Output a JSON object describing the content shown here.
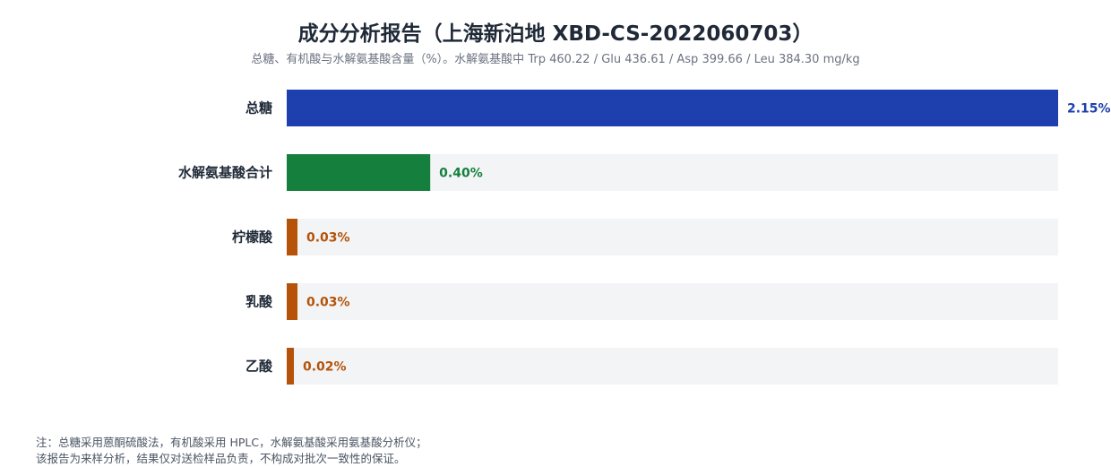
{
  "chart_data": {
    "type": "bar",
    "orientation": "horizontal",
    "title": "成分分析报告（上海新泊地 XBD-CS-2022060703）",
    "subtitle": "总糖、有机酸与水解氨基酸含量（%）。水解氨基酸中 Trp 460.22 / Glu 436.61 / Asp 399.66 / Leu 384.30 mg/kg",
    "categories": [
      "总糖",
      "水解氨基酸合计",
      "柠檬酸",
      "乳酸",
      "乙酸"
    ],
    "values": [
      2.15,
      0.4,
      0.03,
      0.03,
      0.02
    ],
    "value_labels": [
      "2.15%",
      "0.40%",
      "0.03%",
      "0.03%",
      "0.02%"
    ],
    "colors": [
      "#1e40af",
      "#15803d",
      "#b45309",
      "#b45309",
      "#b45309"
    ],
    "track_color": "#f3f4f6",
    "xlim": [
      0,
      2.15
    ],
    "grid": false,
    "legend": "none"
  },
  "footnote": {
    "line1": "注：总糖采用蒽酮硫酸法，有机酸采用 HPLC，水解氨基酸采用氨基酸分析仪；",
    "line2": "该报告为来样分析，结果仅对送检样品负责，不构成对批次一致性的保证。"
  }
}
